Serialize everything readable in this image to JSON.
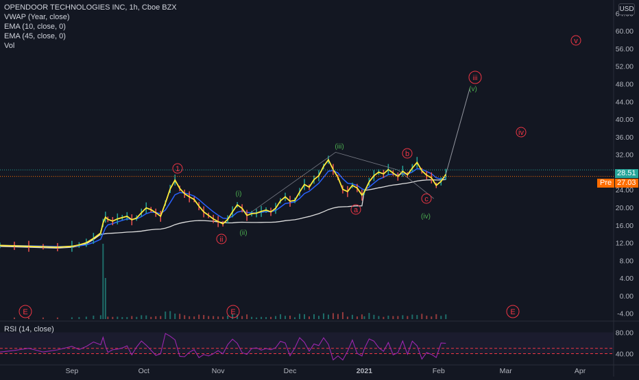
{
  "legend": {
    "title": "OPENDOOR TECHNOLOGIES INC, 1h, Cboe BZX",
    "indicators": [
      "VWAP (Year, close)",
      "EMA (10, close, 0)",
      "EMA (45, close, 0)",
      "Vol"
    ]
  },
  "currency": "USD",
  "rsi_label": "RSI (14, close)",
  "last_price": "28.51",
  "pre_label": "Pre",
  "pre_price": "27.03",
  "colors": {
    "background": "#131722",
    "price_line": "#ffeb3b",
    "ema_fast": "#2962ff",
    "vwap": "#e0e0e0",
    "up": "#26a69a",
    "down": "#ef5350",
    "wave_red": "#f23645",
    "wave_green": "#4caf50",
    "rsi": "#9c27b0",
    "pre": "#ff6d00"
  },
  "chart_data": [
    {
      "type": "line",
      "title": "OPENDOOR TECHNOLOGIES INC, 1h, Cboe BZX",
      "y_ticks": [
        "64.00",
        "60.00",
        "56.00",
        "52.00",
        "48.00",
        "44.00",
        "40.00",
        "36.00",
        "32.00",
        "28.00",
        "24.00",
        "20.00",
        "16.00",
        "12.00",
        "8.00",
        "4.00",
        "0.00",
        "-4.00"
      ],
      "ylim": [
        -5.6,
        67
      ],
      "x_ticks": [
        "Sep",
        "Oct",
        "Nov",
        "Dec",
        "2021",
        "Feb",
        "Mar",
        "Apr"
      ],
      "x_tick_days": [
        0,
        30,
        61,
        91,
        122,
        153,
        181,
        212
      ],
      "xlim_days": [
        -30,
        226
      ],
      "series": [
        {
          "x": [
            -30,
            -24,
            -18,
            -12,
            -6,
            0,
            3,
            6,
            9,
            12,
            13,
            14,
            15,
            17,
            19,
            21,
            23,
            25,
            27,
            29,
            31,
            33,
            35,
            37,
            39,
            41,
            43,
            45,
            47,
            49,
            51,
            53,
            55,
            57,
            59,
            61,
            63,
            65,
            67,
            69,
            71,
            73,
            75,
            77,
            79,
            81,
            83,
            85,
            87,
            89,
            91,
            93,
            95,
            97,
            99,
            101,
            103,
            105,
            107,
            109,
            111,
            113,
            115,
            117,
            119,
            121,
            122,
            124,
            126,
            128,
            130,
            132,
            134,
            136,
            138,
            140,
            142,
            144,
            146,
            148,
            150,
            152,
            154,
            156
          ],
          "values": [
            11.4,
            11.3,
            11.2,
            11.1,
            11.0,
            11.2,
            11.5,
            12.0,
            13.0,
            14.2,
            16.5,
            17.8,
            17.3,
            16.9,
            17.4,
            17.7,
            18.0,
            17.2,
            17.6,
            18.8,
            19.9,
            19.5,
            18.8,
            18.0,
            21.0,
            24.2,
            26.2,
            24.3,
            23.1,
            22.4,
            21.8,
            20.3,
            19.0,
            18.2,
            17.4,
            16.8,
            16.3,
            17.3,
            19.0,
            20.6,
            19.8,
            18.2,
            18.6,
            18.7,
            19.1,
            19.4,
            19.0,
            19.8,
            21.5,
            22.4,
            21.4,
            21.6,
            23.5,
            25.2,
            24.6,
            26.3,
            27.2,
            29.3,
            30.8,
            28.6,
            26.8,
            24.1,
            23.6,
            25.0,
            24.4,
            22.8,
            23.5,
            25.8,
            27.2,
            28.0,
            27.6,
            28.6,
            27.8,
            27.0,
            28.2,
            27.4,
            28.9,
            30.2,
            28.3,
            27.3,
            26.7,
            25.0,
            25.9,
            27.5
          ]
        }
      ],
      "annotations": [
        "1",
        "ii",
        "(i)",
        "(ii)",
        "(iii)",
        "a",
        "b",
        "c",
        "(iv)",
        "(v)",
        "iii",
        "iv",
        "v",
        "E",
        "E",
        "E"
      ]
    },
    {
      "type": "line",
      "title": "RSI (14, close)",
      "y_ticks": [
        "80.00",
        "40.00"
      ],
      "ylim": [
        20,
        100
      ],
      "xlim_days": [
        -30,
        226
      ]
    }
  ]
}
